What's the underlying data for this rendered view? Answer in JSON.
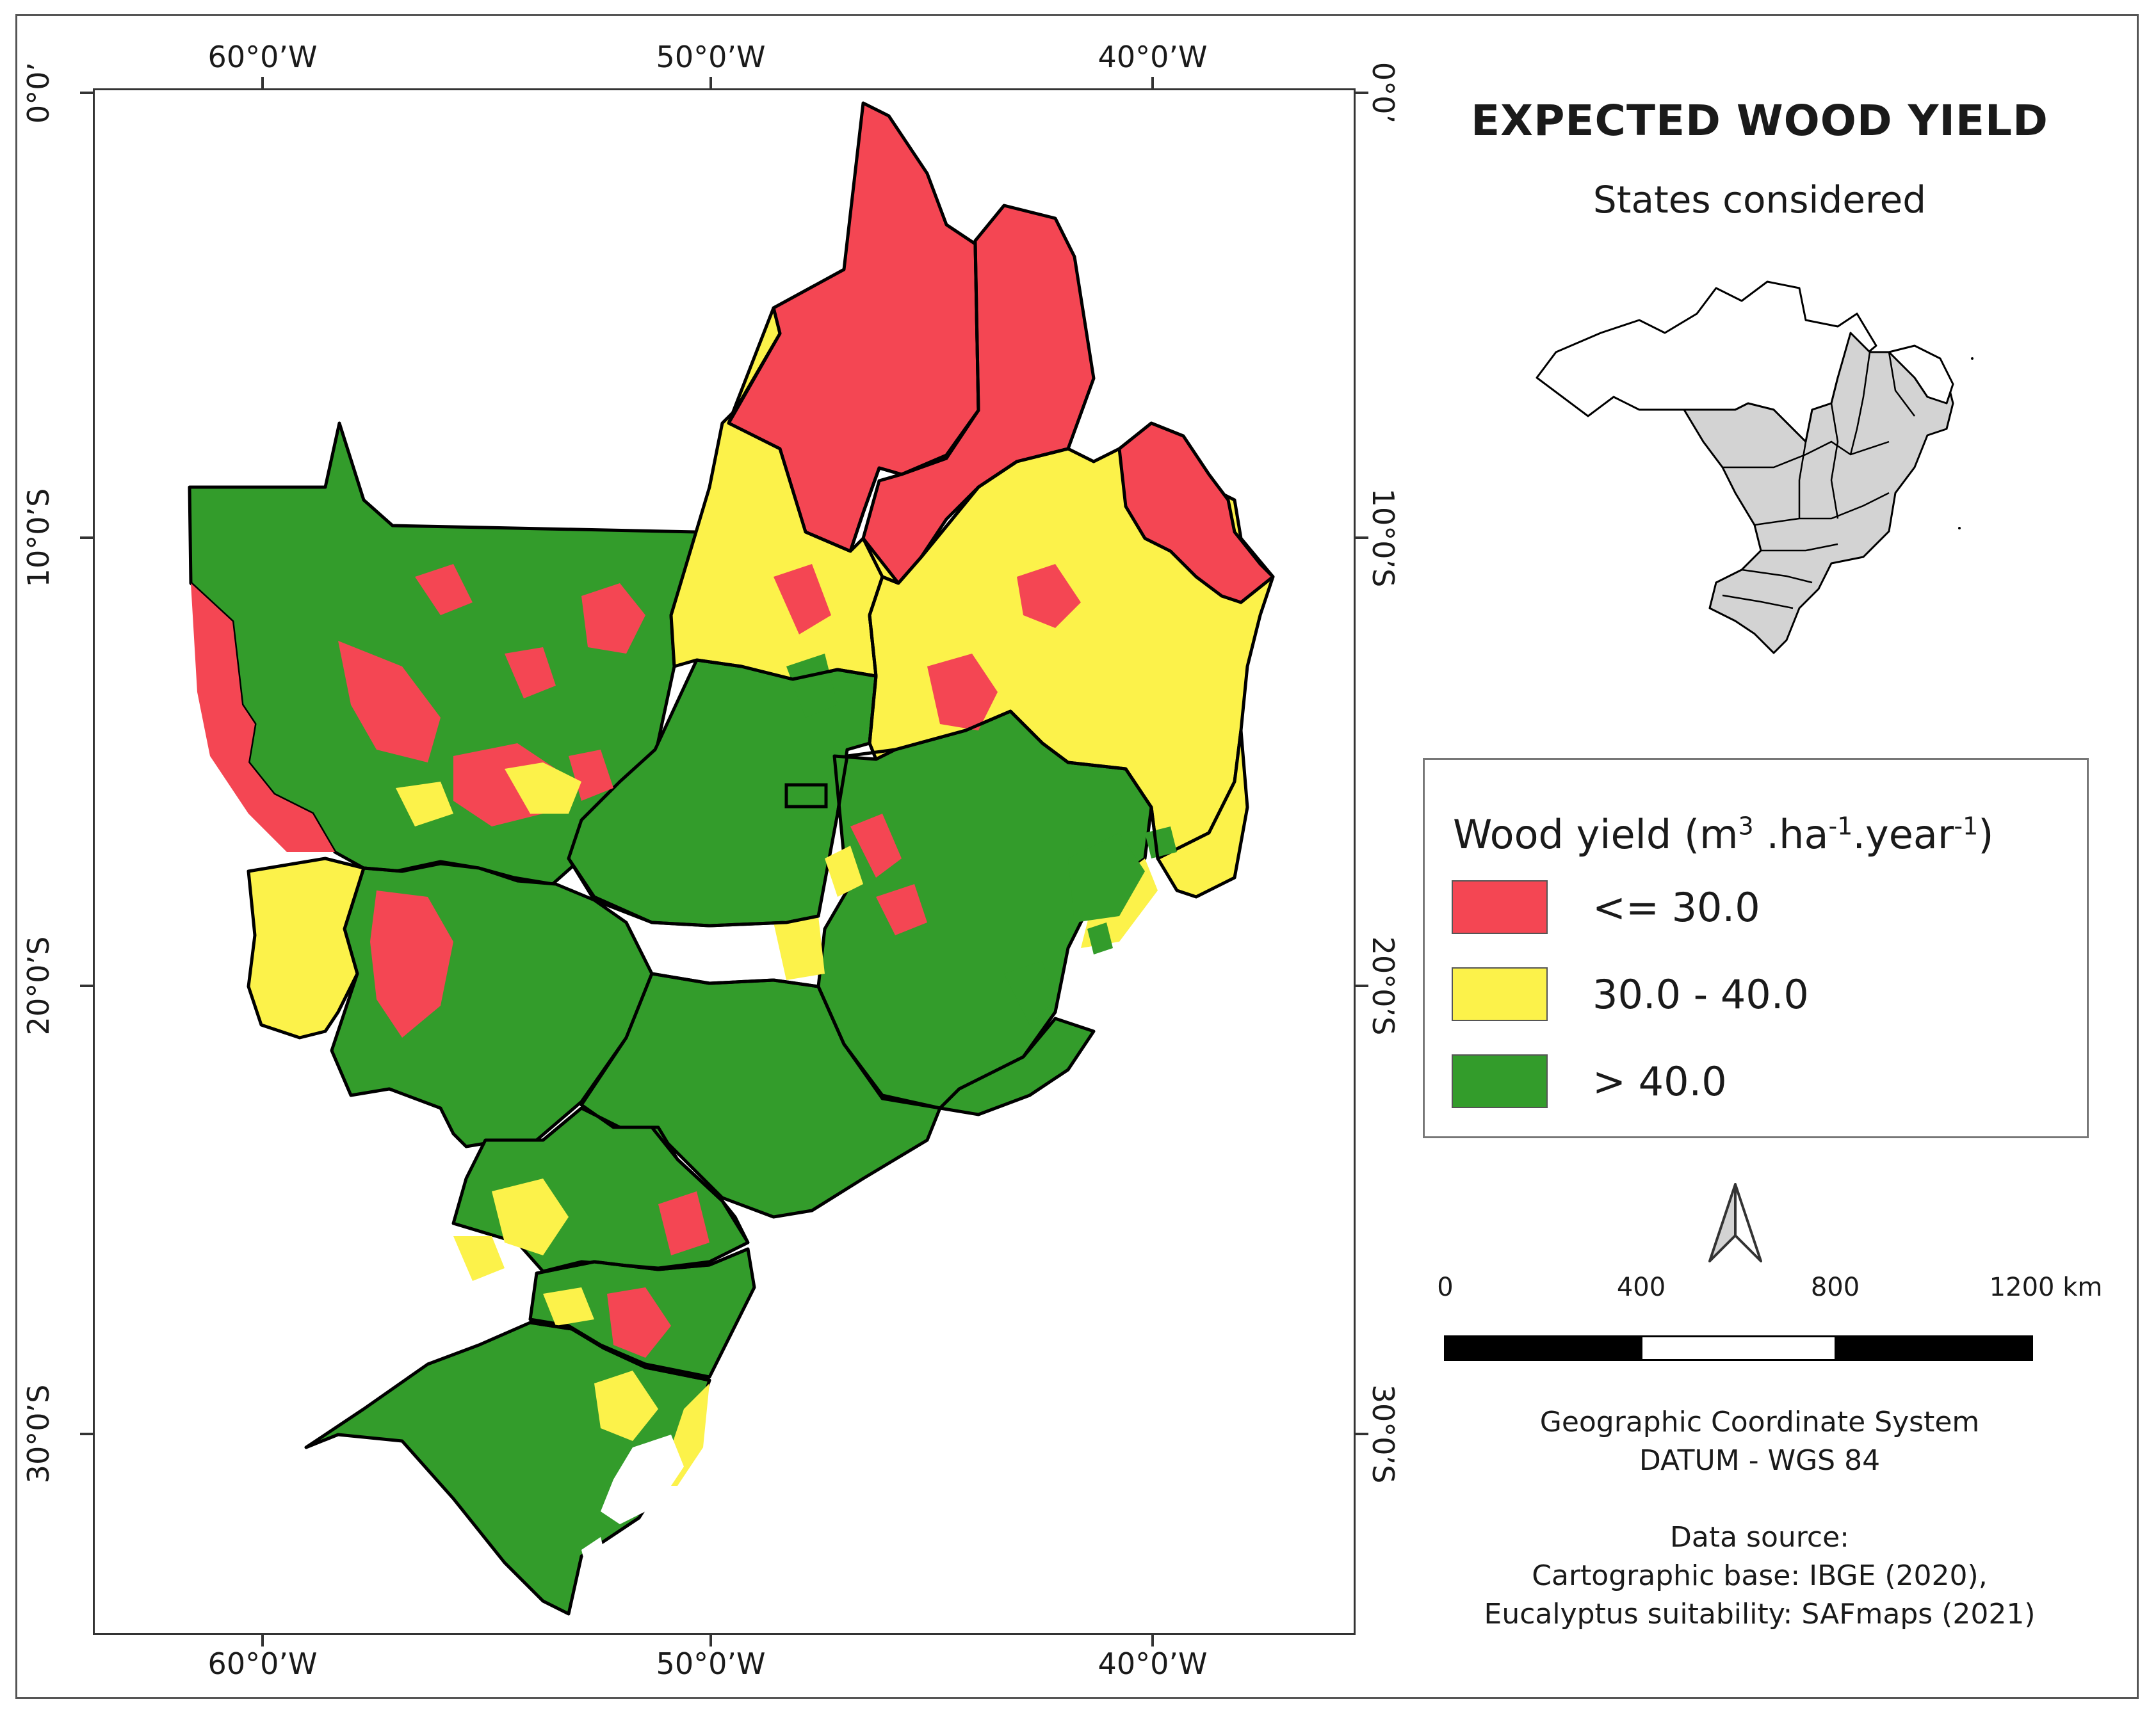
{
  "title": "EXPECTED WOOD YIELD",
  "inset": {
    "subtitle": "States considered",
    "highlight_color": "#d3d3d3"
  },
  "axes": {
    "longitude_ticks": [
      "60°0’W",
      "50°0’W",
      "40°0’W"
    ],
    "latitude_ticks": [
      "0°0’",
      "10°0’S",
      "20°0’S",
      "30°0’S"
    ]
  },
  "legend": {
    "title_base": "Wood yield (m",
    "title_sup1": "3",
    "title_mid1": " .ha",
    "title_sup2": "-1",
    "title_mid2": ".year",
    "title_sup3": "-1",
    "title_end": ")",
    "classes": [
      {
        "label": "<= 30.0",
        "color": "#f44653"
      },
      {
        "label": "30.0 - 40.0",
        "color": "#fcf24a"
      },
      {
        "label": "> 40.0",
        "color": "#339c2b"
      }
    ]
  },
  "north_arrow": {
    "icon": "north-arrow-icon"
  },
  "scale_bar": {
    "labels": [
      "0",
      "400",
      "800",
      "1200 km"
    ]
  },
  "coordinate_system": {
    "line1": "Geographic Coordinate System",
    "line2": "DATUM - WGS 84"
  },
  "data_source": {
    "heading": "Data source:",
    "line1": "Cartographic base: IBGE (2020),",
    "line2": "Eucalyptus suitability: SAFmaps (2021)"
  }
}
